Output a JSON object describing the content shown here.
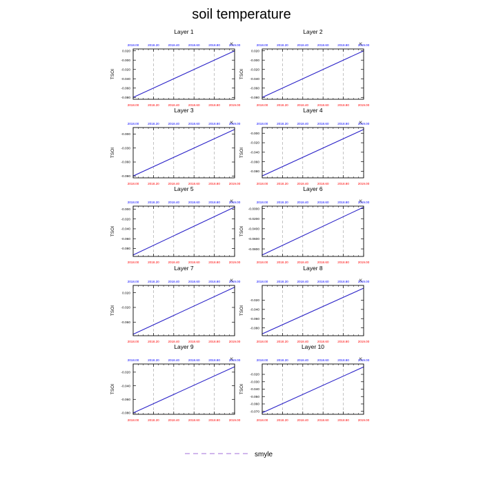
{
  "title": "soil temperature",
  "colors": {
    "series_line": "#2a22c8",
    "top_tick_labels": "#0000ff",
    "bottom_tick_labels": "#ff0000",
    "gridlines": "#999999",
    "legend_line": "#b48be0"
  },
  "legend": {
    "label": "smyle"
  },
  "chart_data": [
    {
      "type": "line",
      "title": "Layer 1",
      "ylabel": "TSOI",
      "unit": "K",
      "x": [
        2018.0,
        2019.0
      ],
      "series": [
        {
          "name": "smyle",
          "values": [
            -0.08,
            0.02
          ]
        }
      ],
      "xlim": [
        2018.0,
        2019.0
      ],
      "ylim": [
        -0.084,
        0.024
      ],
      "xticks": [
        "2018.00",
        "2018.20",
        "2018.40",
        "2018.60",
        "2018.80",
        "2019.00"
      ],
      "yticks": [
        0.02,
        -0.0,
        -0.02,
        -0.04,
        -0.06,
        -0.08
      ],
      "ytick_labels": [
        "0.020",
        "-0.000",
        "-0.020",
        "-0.040",
        "-0.060",
        "-0.080"
      ]
    },
    {
      "type": "line",
      "title": "Layer 2",
      "ylabel": "TSOI",
      "unit": "K",
      "x": [
        2018.0,
        2019.0
      ],
      "series": [
        {
          "name": "smyle",
          "values": [
            -0.08,
            0.02
          ]
        }
      ],
      "xlim": [
        2018.0,
        2019.0
      ],
      "ylim": [
        -0.084,
        0.024
      ],
      "xticks": [
        "2018.00",
        "2018.20",
        "2018.40",
        "2018.60",
        "2018.80",
        "2019.00"
      ],
      "yticks": [
        0.02,
        -0.0,
        -0.02,
        -0.04,
        -0.06,
        -0.08
      ],
      "ytick_labels": [
        "0.020",
        "-0.000",
        "-0.020",
        "-0.040",
        "-0.060",
        "-0.080"
      ]
    },
    {
      "type": "line",
      "title": "Layer 3",
      "ylabel": "TSOI",
      "unit": "K",
      "x": [
        2018.0,
        2019.0
      ],
      "series": [
        {
          "name": "smyle",
          "values": [
            -0.09,
            0.01
          ]
        }
      ],
      "xlim": [
        2018.0,
        2019.0
      ],
      "ylim": [
        -0.094,
        0.014
      ],
      "xticks": [
        "2018.00",
        "2018.20",
        "2018.40",
        "2018.60",
        "2018.80",
        "2019.00"
      ],
      "yticks": [
        -0.0,
        -0.03,
        -0.06,
        -0.09
      ],
      "ytick_labels": [
        "-0.000",
        "-0.030",
        "-0.060",
        "-0.090"
      ]
    },
    {
      "type": "line",
      "title": "Layer 4",
      "ylabel": "TSOI",
      "unit": "K",
      "x": [
        2018.0,
        2019.0
      ],
      "series": [
        {
          "name": "smyle",
          "values": [
            -0.09,
            0.008
          ]
        }
      ],
      "xlim": [
        2018.0,
        2019.0
      ],
      "ylim": [
        -0.094,
        0.012
      ],
      "xticks": [
        "2018.00",
        "2018.20",
        "2018.40",
        "2018.60",
        "2018.80",
        "2019.00"
      ],
      "yticks": [
        -0.0,
        -0.02,
        -0.04,
        -0.06,
        -0.08
      ],
      "ytick_labels": [
        "-0.000",
        "-0.020",
        "-0.040",
        "-0.060",
        "-0.080"
      ]
    },
    {
      "type": "line",
      "title": "Layer 5",
      "ylabel": "TSOI",
      "unit": "K",
      "x": [
        2018.0,
        2019.0
      ],
      "series": [
        {
          "name": "smyle",
          "values": [
            -0.093,
            0.004
          ]
        }
      ],
      "xlim": [
        2018.0,
        2019.0
      ],
      "ylim": [
        -0.096,
        0.006
      ],
      "xticks": [
        "2018.00",
        "2018.20",
        "2018.40",
        "2018.60",
        "2018.80",
        "2019.00"
      ],
      "yticks": [
        -0.0,
        -0.02,
        -0.04,
        -0.06,
        -0.08
      ],
      "ytick_labels": [
        "-0.000",
        "-0.020",
        "-0.040",
        "-0.060",
        "-0.080"
      ]
    },
    {
      "type": "line",
      "title": "Layer 6",
      "ylabel": "TSOI",
      "unit": "K",
      "x": [
        2018.0,
        2019.0
      ],
      "series": [
        {
          "name": "smyle",
          "values": [
            -0.092,
            0.003
          ]
        }
      ],
      "xlim": [
        2018.0,
        2019.0
      ],
      "ylim": [
        -0.095,
        0.005
      ],
      "xticks": [
        "2018.00",
        "2018.20",
        "2018.40",
        "2018.60",
        "2018.80",
        "2019.00"
      ],
      "yticks": [
        -0.0,
        -0.02,
        -0.04,
        -0.06,
        -0.08
      ],
      "ytick_labels": [
        "-0.0000",
        "-0.0200",
        "-0.0400",
        "-0.0600",
        "-0.0800"
      ]
    },
    {
      "type": "line",
      "title": "Layer 7",
      "ylabel": "TSOI",
      "unit": "K",
      "x": [
        2018.0,
        2019.0
      ],
      "series": [
        {
          "name": "smyle",
          "values": [
            -0.093,
            0.035
          ]
        }
      ],
      "xlim": [
        2018.0,
        2019.0
      ],
      "ylim": [
        -0.097,
        0.04
      ],
      "xticks": [
        "2018.00",
        "2018.20",
        "2018.40",
        "2018.60",
        "2018.80",
        "2019.00"
      ],
      "yticks": [
        0.02,
        -0.02,
        -0.06
      ],
      "ytick_labels": [
        "0.020",
        "-0.020",
        "-0.060"
      ]
    },
    {
      "type": "line",
      "title": "Layer 8",
      "ylabel": "TSOI",
      "unit": "K",
      "x": [
        2018.0,
        2019.0
      ],
      "series": [
        {
          "name": "smyle",
          "values": [
            -0.093,
            0.006
          ]
        }
      ],
      "xlim": [
        2018.0,
        2019.0
      ],
      "ylim": [
        -0.097,
        0.012
      ],
      "xticks": [
        "2018.00",
        "2018.20",
        "2018.40",
        "2018.60",
        "2018.80",
        "2019.00"
      ],
      "yticks": [
        -0.02,
        -0.04,
        -0.06,
        -0.08
      ],
      "ytick_labels": [
        "-0.020",
        "-0.040",
        "-0.060",
        "-0.080"
      ]
    },
    {
      "type": "line",
      "title": "Layer 9",
      "ylabel": "TSOI",
      "unit": "K",
      "x": [
        2018.0,
        2019.0
      ],
      "series": [
        {
          "name": "smyle",
          "values": [
            -0.08,
            -0.012
          ]
        }
      ],
      "xlim": [
        2018.0,
        2019.0
      ],
      "ylim": [
        -0.082,
        -0.008
      ],
      "xticks": [
        "2018.00",
        "2018.20",
        "2018.40",
        "2018.60",
        "2018.80",
        "2019.00"
      ],
      "yticks": [
        -0.02,
        -0.04,
        -0.06,
        -0.08
      ],
      "ytick_labels": [
        "-0.020",
        "-0.040",
        "-0.060",
        "-0.080"
      ]
    },
    {
      "type": "line",
      "title": "Layer 10",
      "ylabel": "TSOI",
      "unit": "K",
      "x": [
        2018.0,
        2019.0
      ],
      "series": [
        {
          "name": "smyle",
          "values": [
            -0.072,
            -0.01
          ]
        }
      ],
      "xlim": [
        2018.0,
        2019.0
      ],
      "ylim": [
        -0.074,
        -0.006
      ],
      "xticks": [
        "2018.00",
        "2018.20",
        "2018.40",
        "2018.60",
        "2018.80",
        "2019.00"
      ],
      "yticks": [
        -0.02,
        -0.03,
        -0.04,
        -0.05,
        -0.06,
        -0.07
      ],
      "ytick_labels": [
        "-0.020",
        "-0.030",
        "-0.040",
        "-0.050",
        "-0.060",
        "-0.070"
      ]
    }
  ]
}
